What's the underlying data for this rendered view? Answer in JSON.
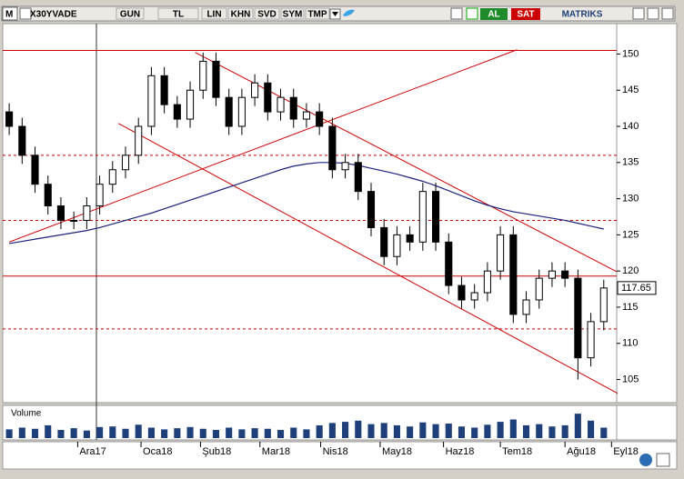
{
  "toolbar": {
    "logo": "M",
    "symbol": "X30YVADE",
    "buttons": [
      "GUN",
      "TL",
      "LIN",
      "KHN",
      "SVD",
      "SYM",
      "TMP"
    ],
    "buy": "AL",
    "sell": "SAT",
    "brand": "MATRIKS"
  },
  "chart_data": {
    "type": "candlestick",
    "last_price": 117.65,
    "xlim": [
      -0.5,
      47
    ],
    "ylim": [
      101.8,
      154.2
    ],
    "yticks": [
      105,
      110,
      115,
      120,
      125,
      130,
      135,
      140,
      145,
      150
    ],
    "xticks": [
      {
        "value": 5.3,
        "label": "Ara17"
      },
      {
        "value": 10.2,
        "label": "Oca18"
      },
      {
        "value": 14.8,
        "label": "Şub18"
      },
      {
        "value": 19.4,
        "label": "Mar18"
      },
      {
        "value": 24.1,
        "label": "Nis18"
      },
      {
        "value": 28.7,
        "label": "May18"
      },
      {
        "value": 33.6,
        "label": "Haz18"
      },
      {
        "value": 38,
        "label": "Tem18"
      },
      {
        "value": 43,
        "label": "Ağu18"
      },
      {
        "value": 46.6,
        "label": "Eyl18"
      }
    ],
    "open": [
      142,
      140,
      136,
      132,
      129,
      127,
      127,
      129,
      132,
      134,
      136,
      140,
      147,
      143,
      141,
      145,
      149,
      144,
      140,
      144,
      146,
      142,
      144,
      141,
      142,
      140,
      134,
      135,
      131,
      126,
      122,
      125,
      124,
      131,
      124,
      118,
      116,
      117,
      120,
      125,
      114,
      116,
      119,
      120,
      119,
      108,
      113
    ],
    "high": [
      143.2,
      141.2,
      137.2,
      133.2,
      130.2,
      128.2,
      130.2,
      133.2,
      135.2,
      137.2,
      141.2,
      148.2,
      148.2,
      144.2,
      146.2,
      150.2,
      150.2,
      145.2,
      145.2,
      147.2,
      147.2,
      145.2,
      145.2,
      143.2,
      143.2,
      141.2,
      136.2,
      136.2,
      132.2,
      127.2,
      126.2,
      126.2,
      132.2,
      132.2,
      125.2,
      119.2,
      118.2,
      121.2,
      126.2,
      126.2,
      117.2,
      120.2,
      121.2,
      121.2,
      120.2,
      114.2,
      118.8
    ],
    "low": [
      138.8,
      134.8,
      130.8,
      127.8,
      125.8,
      125.8,
      125.8,
      127.8,
      130.8,
      132.8,
      134.8,
      138.8,
      141.8,
      139.8,
      139.8,
      143.8,
      142.8,
      138.8,
      138.8,
      142.8,
      140.8,
      140.8,
      139.8,
      139.8,
      138.8,
      132.8,
      132.8,
      129.8,
      124.8,
      120.8,
      120.8,
      122.8,
      122.8,
      122.8,
      116.8,
      114.8,
      114.8,
      115.8,
      118.8,
      112.8,
      112.8,
      114.8,
      117.8,
      117.8,
      105,
      106.8,
      111.8
    ],
    "close": [
      140,
      136,
      132,
      129,
      127,
      127,
      129,
      132,
      134,
      136,
      140,
      147,
      143,
      141,
      145,
      149,
      144,
      140,
      144,
      146,
      142,
      144,
      141,
      142,
      140,
      134,
      135,
      131,
      126,
      122,
      125,
      124,
      131,
      124,
      118,
      116,
      117,
      120,
      125,
      114,
      116,
      119,
      120,
      119,
      108,
      113,
      117.65
    ],
    "moving_average": {
      "color": "#1a237e",
      "values": [
        123.8,
        124.1,
        124.4,
        124.7,
        125,
        125.3,
        125.6,
        126,
        126.5,
        127,
        127.5,
        128,
        128.6,
        129.2,
        129.8,
        130.4,
        131,
        131.6,
        132.2,
        132.8,
        133.4,
        134,
        134.5,
        134.8,
        135,
        135,
        134.9,
        134.6,
        134.2,
        133.8,
        133.4,
        132.9,
        132.4,
        131.8,
        131.1,
        130.4,
        129.7,
        129.1,
        128.6,
        128.2,
        127.9,
        127.6,
        127.3,
        127,
        126.6,
        126.2,
        125.8
      ]
    },
    "levels": [
      {
        "value": 150.5,
        "style": "solid"
      },
      {
        "value": 136,
        "style": "dashed"
      },
      {
        "value": 127,
        "style": "dashed"
      },
      {
        "value": 119.3,
        "style": "solid"
      },
      {
        "value": 112,
        "style": "dashed"
      }
    ],
    "trendlines": [
      [
        [
          14.4,
          150.2
        ],
        [
          47,
          119.9
        ]
      ],
      [
        [
          8.45,
          140.4
        ],
        [
          47.06,
          103.1
        ]
      ],
      [
        [
          0,
          124
        ],
        [
          39.3,
          150.6
        ]
      ]
    ],
    "line_color": "#cc0000",
    "volume": {
      "label": "Volume",
      "color": "#1f3f7a",
      "vlim": [
        0,
        5000000
      ],
      "values": [
        1500000,
        1800000,
        1600000,
        2200000,
        1400000,
        1700000,
        1300000,
        1900000,
        2000000,
        1600000,
        2300000,
        1800000,
        1500000,
        1700000,
        1900000,
        1600000,
        1400000,
        1800000,
        1500000,
        1700000,
        1600000,
        1400000,
        1800000,
        1500000,
        2200000,
        2600000,
        2800000,
        3000000,
        2400000,
        2600000,
        2200000,
        2000000,
        2700000,
        2400000,
        2500000,
        2000000,
        1800000,
        2300000,
        2800000,
        3200000,
        2200000,
        2400000,
        2000000,
        2200000,
        4200000,
        3000000,
        1800000
      ]
    }
  }
}
